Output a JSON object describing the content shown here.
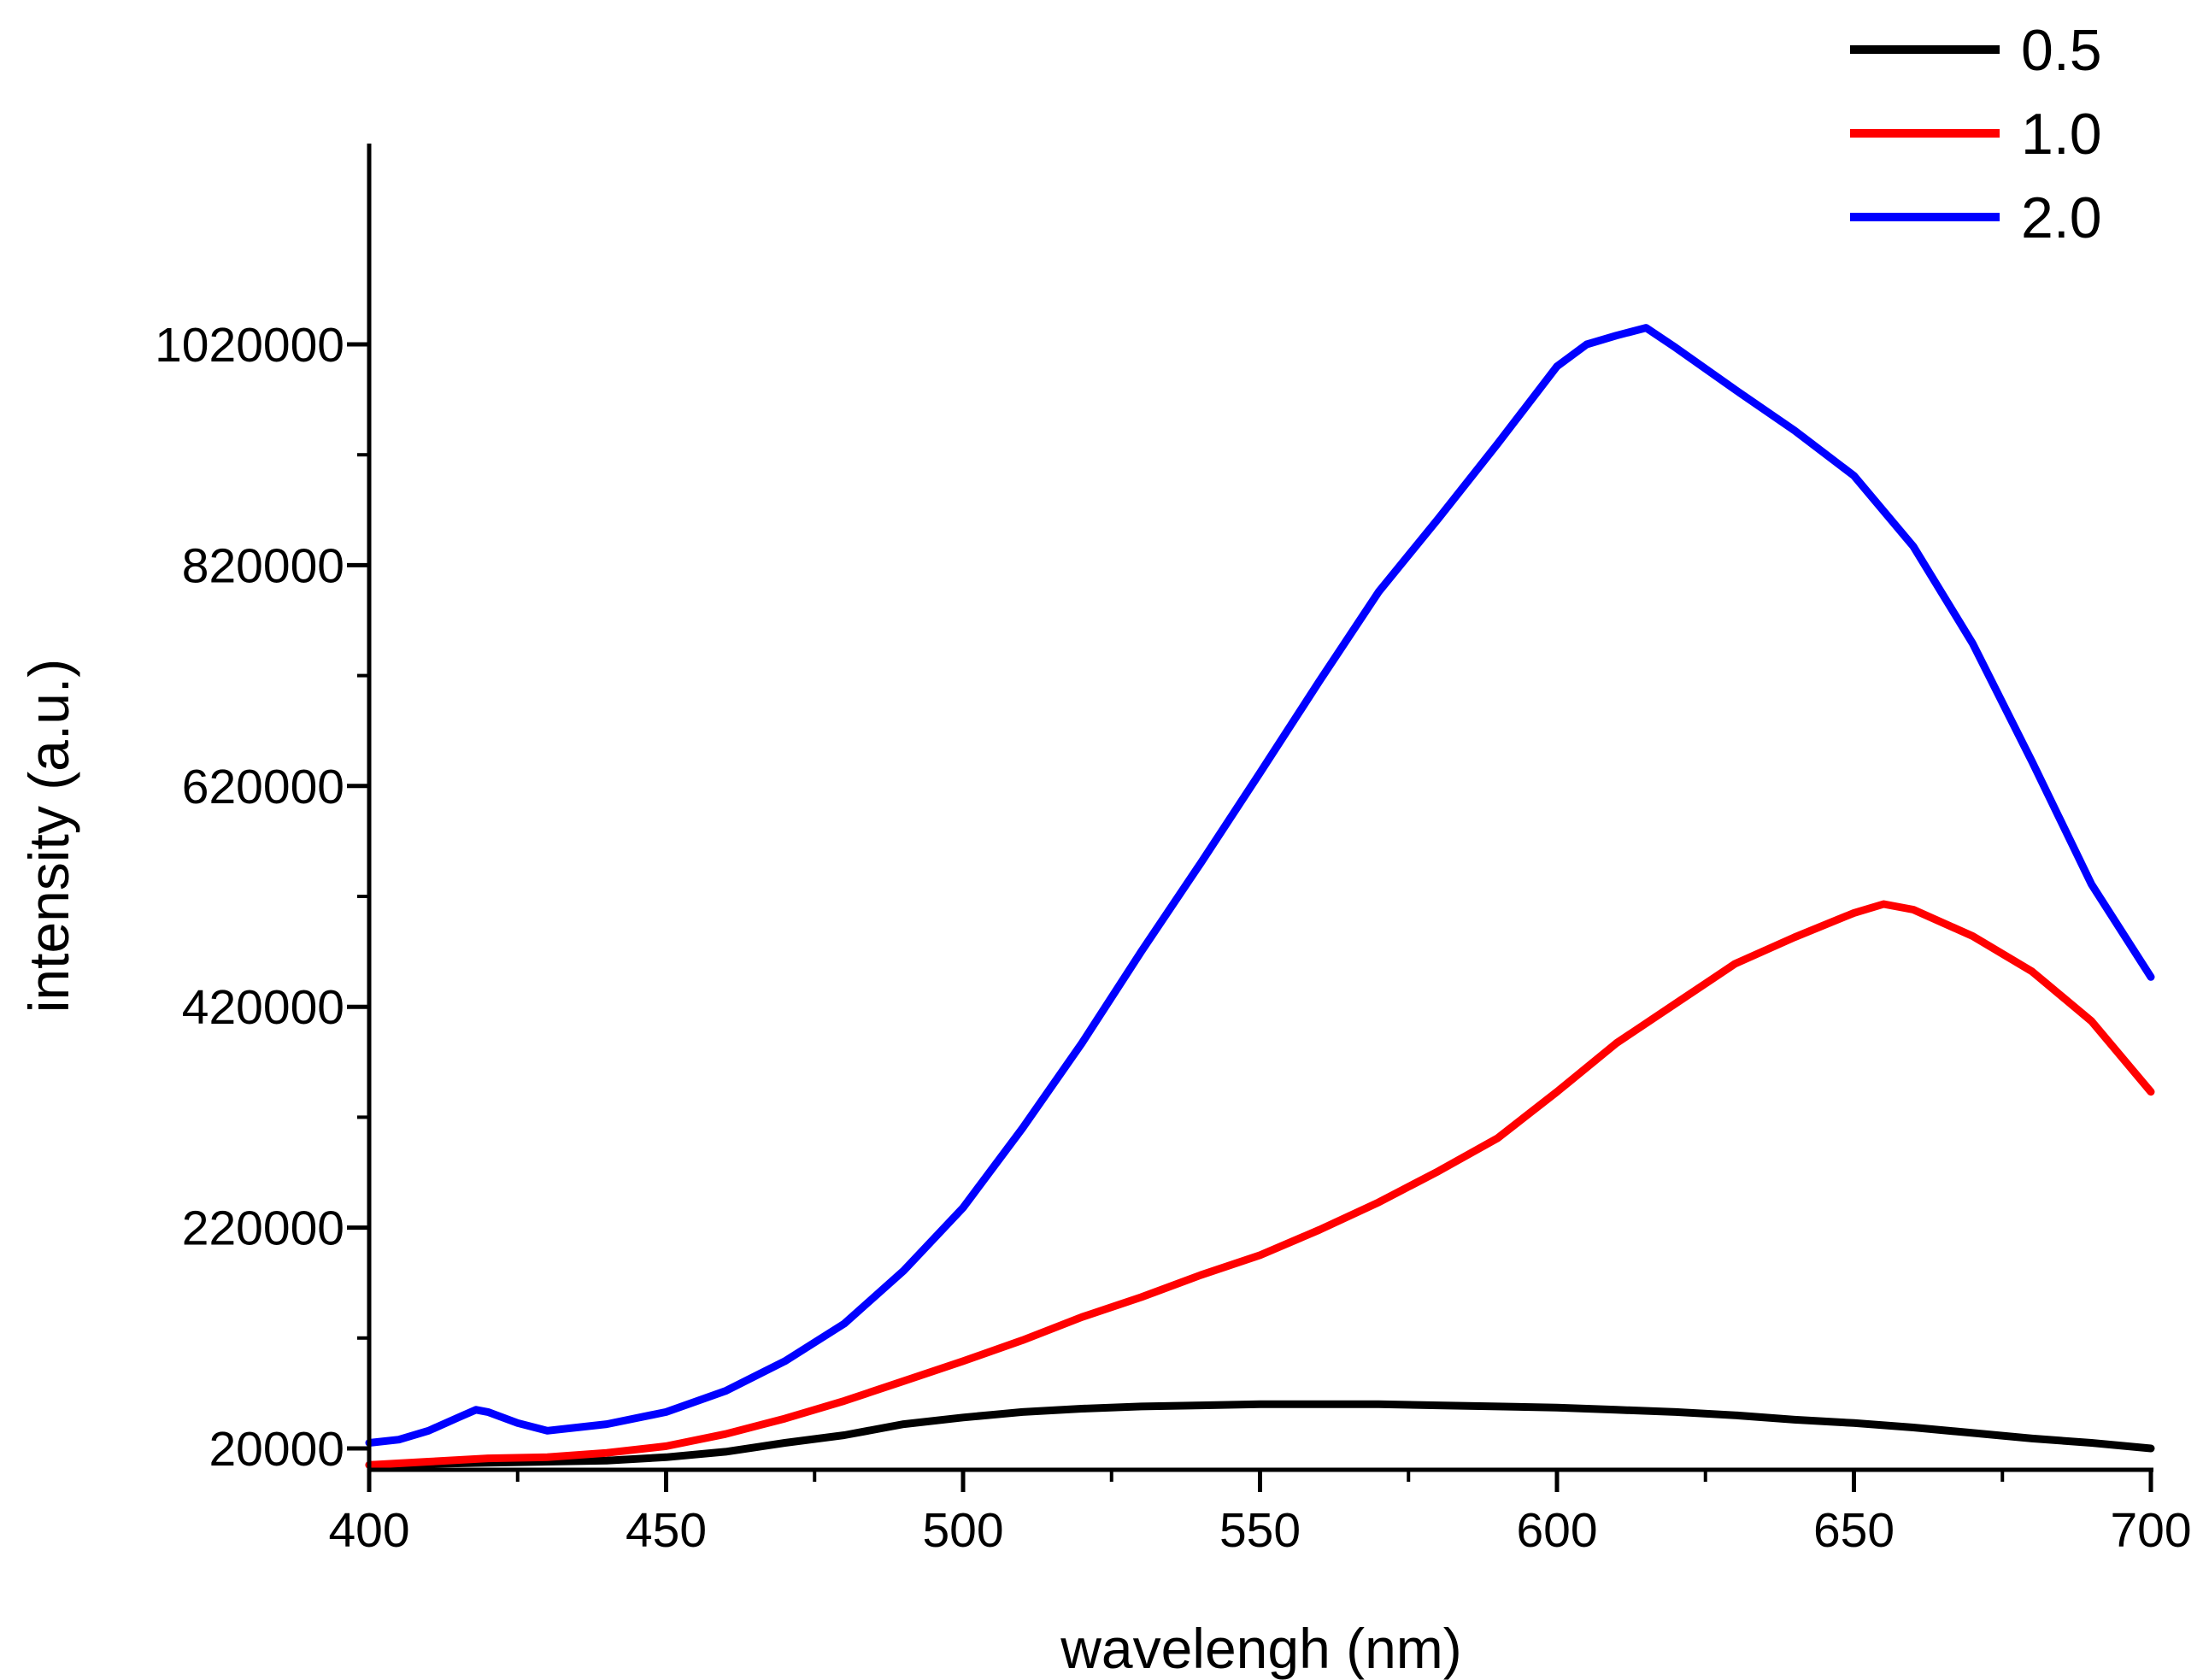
{
  "chart_data": {
    "type": "line",
    "title": "",
    "xlabel": "wavelengh (nm)",
    "ylabel": "intensity (a.u.)",
    "xlim": [
      400,
      700
    ],
    "ylim": [
      0,
      1180000
    ],
    "xticks": [
      400,
      450,
      500,
      550,
      600,
      650,
      700
    ],
    "xtick_labels": [
      "400",
      "450",
      "500",
      "550",
      "600",
      "650",
      "700"
    ],
    "yticks": [
      20000,
      220000,
      420000,
      620000,
      820000,
      1020000
    ],
    "ytick_labels": [
      "20000",
      "220000",
      "420000",
      "620000",
      "820000",
      "1020000"
    ],
    "grid": false,
    "legend_position": "top-right",
    "series": [
      {
        "name": "0.5",
        "color": "#000000",
        "x": [
          400,
          410,
          420,
          430,
          440,
          450,
          460,
          470,
          480,
          490,
          500,
          510,
          520,
          530,
          540,
          550,
          560,
          570,
          580,
          590,
          600,
          610,
          620,
          630,
          640,
          650,
          660,
          670,
          680,
          690,
          700
        ],
        "y": [
          5000,
          6000,
          7000,
          8000,
          9000,
          12000,
          17000,
          25000,
          32000,
          42000,
          48000,
          53000,
          56000,
          58000,
          59000,
          60000,
          60000,
          60000,
          59000,
          58000,
          57000,
          55000,
          53000,
          50000,
          46000,
          43000,
          39000,
          34000,
          29000,
          25000,
          20000
        ]
      },
      {
        "name": "1.0",
        "color": "#ff0000",
        "x": [
          400,
          410,
          420,
          430,
          440,
          450,
          460,
          470,
          480,
          490,
          500,
          510,
          520,
          530,
          540,
          550,
          560,
          570,
          580,
          590,
          600,
          610,
          620,
          630,
          640,
          650,
          655,
          660,
          670,
          680,
          690,
          700
        ],
        "y": [
          5000,
          8000,
          11000,
          12000,
          16000,
          22000,
          33000,
          47000,
          63000,
          81000,
          99000,
          118000,
          139000,
          157000,
          177000,
          195000,
          218000,
          243000,
          271000,
          301000,
          343000,
          387000,
          423000,
          459000,
          483000,
          505000,
          513000,
          508000,
          484000,
          452000,
          407000,
          343000
        ]
      },
      {
        "name": "2.0",
        "color": "#0000ff",
        "x": [
          400,
          405,
          410,
          415,
          418,
          420,
          425,
          430,
          440,
          450,
          460,
          470,
          480,
          490,
          500,
          510,
          520,
          530,
          540,
          550,
          560,
          570,
          580,
          590,
          600,
          605,
          610,
          615,
          620,
          630,
          640,
          650,
          660,
          670,
          680,
          690,
          700
        ],
        "y": [
          25000,
          28000,
          36000,
          48000,
          55000,
          53000,
          43000,
          36000,
          42000,
          53000,
          72000,
          99000,
          133000,
          181000,
          238000,
          310000,
          387000,
          470000,
          550000,
          632000,
          715000,
          796000,
          862000,
          930000,
          1000000,
          1020000,
          1028000,
          1035000,
          1017000,
          979000,
          942000,
          901000,
          837000,
          749000,
          642000,
          531000,
          447000
        ]
      }
    ]
  }
}
